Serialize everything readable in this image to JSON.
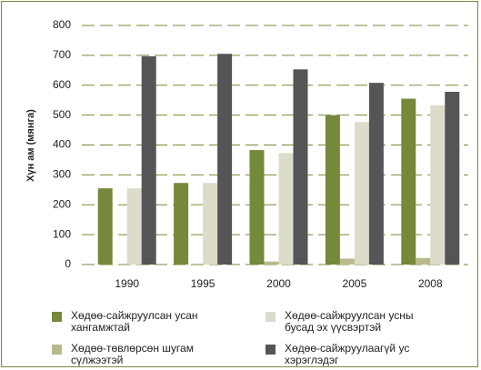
{
  "chart_data": {
    "type": "bar",
    "y_label": "Хүн ам  (мянга)",
    "categories": [
      "1990",
      "1995",
      "2000",
      "2005",
      "2008"
    ],
    "series": [
      {
        "name": "Хөдөө-сайжруулсан усан хангамжтай",
        "color": "#76883a",
        "values": [
          255,
          273,
          383,
          500,
          555
        ]
      },
      {
        "name": "Хөдөө-төвлөрсөн шугам сүлжээтэй",
        "color": "#b9b98c",
        "values": [
          0,
          0,
          10,
          20,
          22
        ]
      },
      {
        "name": "Хөдөө-сайжруулсан усны бусад эх үүсвэртэй",
        "color": "#dddccb",
        "values": [
          255,
          273,
          373,
          477,
          533
        ]
      },
      {
        "name": "Хөдөө-сайжруулаагүй ус хэрэглэдэг",
        "color": "#555558",
        "values": [
          697,
          705,
          653,
          608,
          578
        ]
      }
    ],
    "ylim": [
      0,
      800
    ],
    "yticks": [
      0,
      100,
      200,
      300,
      400,
      500,
      600,
      700,
      800
    ],
    "grid": true
  }
}
